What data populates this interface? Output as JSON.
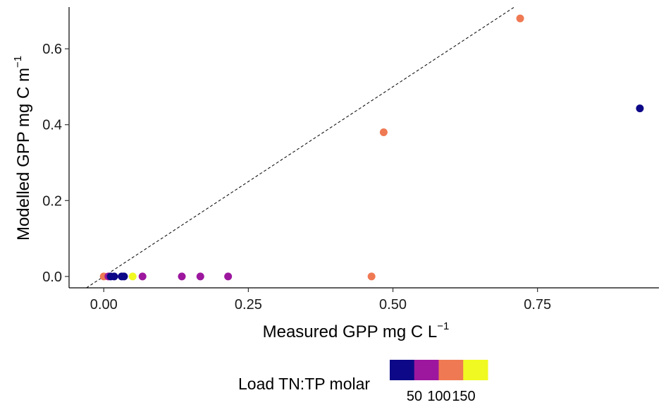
{
  "chart_data": {
    "type": "scatter",
    "xlabel": "Measured GPP mg C L",
    "xlabel_sup": "−1",
    "ylabel": "Modelled GPP mg C m",
    "ylabel_sup": "−1",
    "xlim": [
      -0.06,
      0.96
    ],
    "ylim": [
      -0.03,
      0.71
    ],
    "x_ticks": [
      0.0,
      0.25,
      0.5,
      0.75
    ],
    "x_tick_labels": [
      "0.00",
      "0.25",
      "0.50",
      "0.75"
    ],
    "y_ticks": [
      0.0,
      0.2,
      0.4,
      0.6
    ],
    "y_tick_labels": [
      "0.0",
      "0.2",
      "0.4",
      "0.6"
    ],
    "reference_line": {
      "type": "y=x",
      "style": "dashed",
      "color": "#000000"
    },
    "grid": false,
    "points": [
      {
        "x": 0.0,
        "y": 0.0,
        "color": "#ef7953"
      },
      {
        "x": 0.008,
        "y": 0.0,
        "color": "#9c179e"
      },
      {
        "x": 0.012,
        "y": 0.0,
        "color": "#0d0887"
      },
      {
        "x": 0.018,
        "y": 0.0,
        "color": "#0d0887"
      },
      {
        "x": 0.031,
        "y": 0.0,
        "color": "#0d0887"
      },
      {
        "x": 0.035,
        "y": 0.0,
        "color": "#0d0887"
      },
      {
        "x": 0.05,
        "y": 0.0,
        "color": "#f0f921"
      },
      {
        "x": 0.067,
        "y": 0.0,
        "color": "#9c179e"
      },
      {
        "x": 0.135,
        "y": 0.0,
        "color": "#9c179e"
      },
      {
        "x": 0.167,
        "y": 0.0,
        "color": "#9c179e"
      },
      {
        "x": 0.215,
        "y": 0.0,
        "color": "#9c179e"
      },
      {
        "x": 0.463,
        "y": 0.0,
        "color": "#ef7953"
      },
      {
        "x": 0.484,
        "y": 0.38,
        "color": "#ef7953"
      },
      {
        "x": 0.72,
        "y": 0.68,
        "color": "#ef7953"
      },
      {
        "x": 0.927,
        "y": 0.443,
        "color": "#0d0887"
      }
    ],
    "legend": {
      "title": "Load TN:TP molar",
      "placement": "bottom",
      "colors": [
        "#0d0887",
        "#9c179e",
        "#ef7953",
        "#f0f921"
      ],
      "tick_labels": [
        "50",
        "100",
        "150"
      ]
    }
  }
}
